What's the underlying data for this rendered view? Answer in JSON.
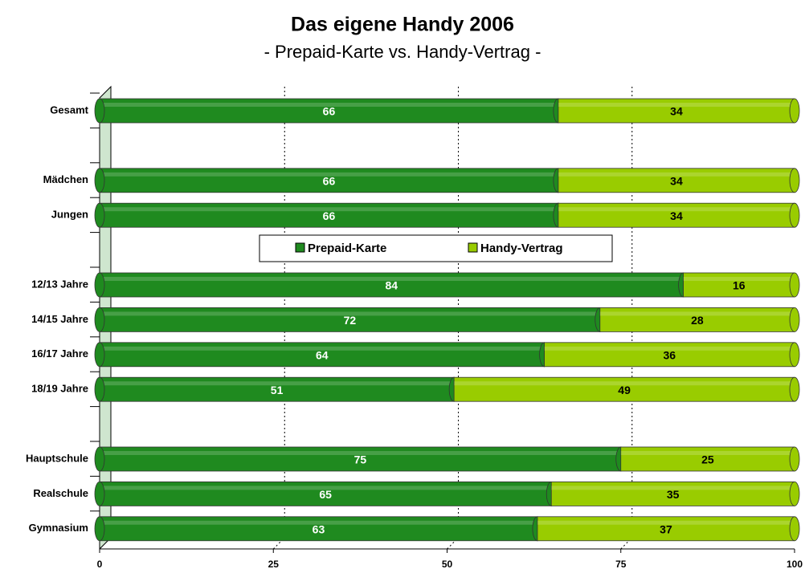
{
  "chart_data": {
    "type": "bar",
    "orientation": "horizontal",
    "stacked": true,
    "title": "Das eigene Handy 2006",
    "subtitle": "- Prepaid-Karte vs. Handy-Vertrag -",
    "categories": [
      "Gesamt",
      null,
      "Mädchen",
      "Jungen",
      null,
      "12/13 Jahre",
      "14/15 Jahre",
      "16/17 Jahre",
      "18/19 Jahre",
      null,
      "Hauptschule",
      "Realschule",
      "Gymnasium"
    ],
    "series": [
      {
        "name": "Prepaid-Karte",
        "color": "#1f8a1f",
        "values": [
          66,
          null,
          66,
          66,
          null,
          84,
          72,
          64,
          51,
          null,
          75,
          65,
          63
        ]
      },
      {
        "name": "Handy-Vertrag",
        "color": "#99cc00",
        "values": [
          34,
          null,
          34,
          34,
          null,
          16,
          28,
          36,
          49,
          null,
          25,
          35,
          37
        ]
      }
    ],
    "xlim": [
      0,
      100
    ],
    "xticks": [
      0,
      25,
      50,
      75,
      100
    ],
    "grid": true
  }
}
